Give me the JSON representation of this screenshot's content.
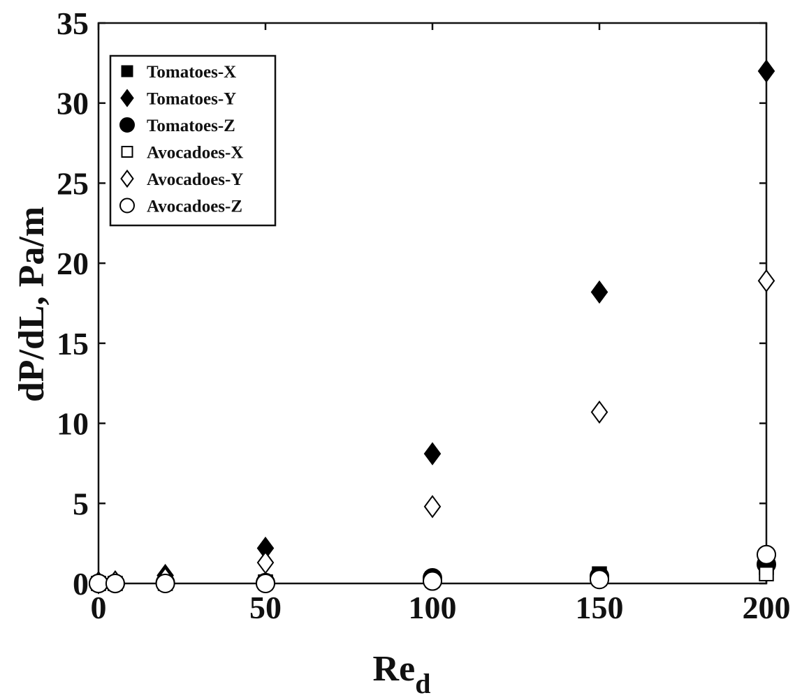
{
  "chart_data": {
    "type": "scatter",
    "xlabel": "Re",
    "xlabel_subscript": "d",
    "ylabel": "dP/dL, Pa/m",
    "xlim": [
      0,
      200
    ],
    "ylim": [
      0,
      35
    ],
    "x_ticks": [
      0,
      50,
      100,
      150,
      200
    ],
    "y_ticks": [
      0,
      5,
      10,
      15,
      20,
      25,
      30,
      35
    ],
    "grid": false,
    "legend_position": "top-left",
    "series": [
      {
        "name": "Tomatoes-X",
        "marker": "square",
        "filled": true,
        "x": [
          0,
          5,
          20,
          50,
          100,
          150,
          200
        ],
        "y": [
          0.0,
          0.0,
          0.05,
          0.1,
          0.3,
          0.6,
          1.0
        ]
      },
      {
        "name": "Tomatoes-Y",
        "marker": "diamond",
        "filled": true,
        "x": [
          0,
          5,
          20,
          50,
          100,
          150,
          200
        ],
        "y": [
          0.05,
          0.1,
          0.5,
          2.2,
          8.1,
          18.2,
          32.0
        ]
      },
      {
        "name": "Tomatoes-Z",
        "marker": "circle",
        "filled": true,
        "x": [
          0,
          5,
          20,
          50,
          100,
          150,
          200
        ],
        "y": [
          0.0,
          0.0,
          0.05,
          0.05,
          0.35,
          0.45,
          1.2
        ]
      },
      {
        "name": "Avocadoes-X",
        "marker": "square",
        "filled": false,
        "x": [
          0,
          5,
          20,
          50,
          100,
          150,
          200
        ],
        "y": [
          0.0,
          0.0,
          0.0,
          0.05,
          0.2,
          0.3,
          0.6
        ]
      },
      {
        "name": "Avocadoes-Y",
        "marker": "diamond",
        "filled": false,
        "x": [
          0,
          5,
          20,
          50,
          100,
          150,
          200
        ],
        "y": [
          0.05,
          0.1,
          0.3,
          1.3,
          4.8,
          10.7,
          18.9
        ]
      },
      {
        "name": "Avocadoes-Z",
        "marker": "circle",
        "filled": false,
        "x": [
          0,
          5,
          20,
          50,
          100,
          150,
          200
        ],
        "y": [
          0.0,
          0.0,
          0.0,
          0.0,
          0.15,
          0.25,
          1.8
        ]
      }
    ]
  }
}
